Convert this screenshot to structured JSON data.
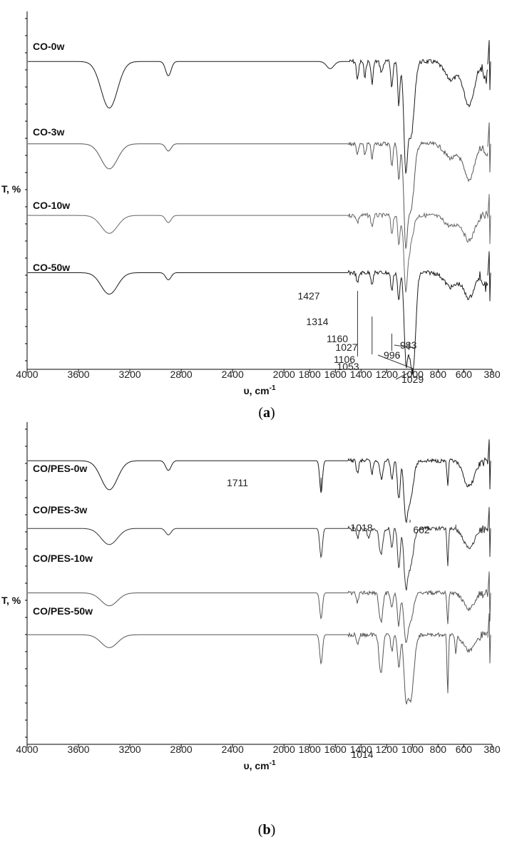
{
  "chart_data": [
    {
      "type": "line",
      "panel_label": "a",
      "xlabel_main": "υ, cm",
      "xlabel_sup": "-1",
      "ylabel": "T, %",
      "xlim": [
        4000,
        380
      ],
      "x_ticks": [
        4000,
        3600,
        3200,
        2800,
        2400,
        2000,
        1800,
        1600,
        1400,
        1200,
        1000,
        800,
        600,
        380
      ],
      "series": [
        {
          "name": "CO-0w",
          "color": "#1a1a1a",
          "base": 0.14,
          "features": [
            {
              "c": 3360,
              "w": 90,
              "d": 0.13
            },
            {
              "c": 2900,
              "w": 30,
              "d": 0.04
            },
            {
              "c": 1640,
              "w": 40,
              "d": 0.02
            },
            {
              "c": 1427,
              "w": 12,
              "d": 0.05
            },
            {
              "c": 1370,
              "w": 12,
              "d": 0.04
            },
            {
              "c": 1314,
              "w": 12,
              "d": 0.06
            },
            {
              "c": 1240,
              "w": 15,
              "d": 0.03
            },
            {
              "c": 1160,
              "w": 12,
              "d": 0.07
            },
            {
              "c": 1106,
              "w": 12,
              "d": 0.12
            },
            {
              "c": 1053,
              "w": 18,
              "d": 0.2
            },
            {
              "c": 1029,
              "w": 40,
              "d": 0.15
            },
            {
              "c": 1000,
              "w": 30,
              "d": 0.1
            },
            {
              "c": 700,
              "w": 70,
              "d": 0.05
            },
            {
              "c": 560,
              "w": 60,
              "d": 0.12
            },
            {
              "c": 430,
              "w": 25,
              "d": 0.05
            }
          ],
          "annotations": [
            {
              "x": 1427,
              "label": "1427"
            },
            {
              "x": 1314,
              "label": "1314"
            },
            {
              "x": 1160,
              "label": "1160"
            },
            {
              "x": 1106,
              "label": "1106"
            },
            {
              "x": 1053,
              "label": "1053"
            },
            {
              "x": 1029,
              "label": "1029"
            }
          ]
        },
        {
          "name": "CO-3w",
          "color": "#555555",
          "base": 0.37,
          "features": [
            {
              "c": 3360,
              "w": 90,
              "d": 0.07
            },
            {
              "c": 2900,
              "w": 30,
              "d": 0.02
            },
            {
              "c": 1427,
              "w": 12,
              "d": 0.03
            },
            {
              "c": 1370,
              "w": 12,
              "d": 0.03
            },
            {
              "c": 1314,
              "w": 12,
              "d": 0.04
            },
            {
              "c": 1160,
              "w": 12,
              "d": 0.06
            },
            {
              "c": 1106,
              "w": 12,
              "d": 0.1
            },
            {
              "c": 1053,
              "w": 18,
              "d": 0.19
            },
            {
              "c": 1029,
              "w": 40,
              "d": 0.14
            },
            {
              "c": 1000,
              "w": 30,
              "d": 0.08
            },
            {
              "c": 700,
              "w": 70,
              "d": 0.04
            },
            {
              "c": 560,
              "w": 60,
              "d": 0.1
            },
            {
              "c": 430,
              "w": 25,
              "d": 0.03
            }
          ],
          "annotations": []
        },
        {
          "name": "CO-10w",
          "color": "#666666",
          "base": 0.57,
          "features": [
            {
              "c": 3360,
              "w": 90,
              "d": 0.05
            },
            {
              "c": 2900,
              "w": 30,
              "d": 0.02
            },
            {
              "c": 1427,
              "w": 12,
              "d": 0.02
            },
            {
              "c": 1314,
              "w": 12,
              "d": 0.03
            },
            {
              "c": 1160,
              "w": 12,
              "d": 0.05
            },
            {
              "c": 1106,
              "w": 12,
              "d": 0.08
            },
            {
              "c": 1053,
              "w": 18,
              "d": 0.14
            },
            {
              "c": 1029,
              "w": 40,
              "d": 0.1
            },
            {
              "c": 700,
              "w": 70,
              "d": 0.03
            },
            {
              "c": 560,
              "w": 60,
              "d": 0.07
            }
          ],
          "annotations": []
        },
        {
          "name": "CO-50w",
          "color": "#1a1a1a",
          "base": 0.73,
          "features": [
            {
              "c": 3360,
              "w": 90,
              "d": 0.06
            },
            {
              "c": 2900,
              "w": 30,
              "d": 0.02
            },
            {
              "c": 1427,
              "w": 12,
              "d": 0.03
            },
            {
              "c": 1314,
              "w": 12,
              "d": 0.03
            },
            {
              "c": 1160,
              "w": 12,
              "d": 0.05
            },
            {
              "c": 1106,
              "w": 12,
              "d": 0.08
            },
            {
              "c": 1053,
              "w": 18,
              "d": 0.16
            },
            {
              "c": 1027,
              "w": 30,
              "d": 0.18
            },
            {
              "c": 996,
              "w": 25,
              "d": 0.14
            },
            {
              "c": 983,
              "w": 25,
              "d": 0.1
            },
            {
              "c": 700,
              "w": 70,
              "d": 0.04
            },
            {
              "c": 560,
              "w": 60,
              "d": 0.07
            },
            {
              "c": 430,
              "w": 25,
              "d": 0.04
            }
          ],
          "annotations": [
            {
              "x": 1027,
              "label": "1027"
            },
            {
              "x": 996,
              "label": "996"
            },
            {
              "x": 983,
              "label": "983"
            }
          ]
        }
      ]
    },
    {
      "type": "line",
      "panel_label": "b",
      "xlabel_main": "υ, cm",
      "xlabel_sup": "-1",
      "ylabel": "T, %",
      "xlim": [
        4000,
        380
      ],
      "x_ticks": [
        4000,
        3600,
        3200,
        2800,
        2400,
        2000,
        1800,
        1600,
        1400,
        1200,
        1000,
        800,
        600,
        380
      ],
      "series": [
        {
          "name": "CO/PES-0w",
          "color": "#1a1a1a",
          "base": 0.12,
          "features": [
            {
              "c": 3360,
              "w": 90,
              "d": 0.09
            },
            {
              "c": 2900,
              "w": 30,
              "d": 0.03
            },
            {
              "c": 1711,
              "w": 15,
              "d": 0.1
            },
            {
              "c": 1427,
              "w": 12,
              "d": 0.04
            },
            {
              "c": 1314,
              "w": 12,
              "d": 0.04
            },
            {
              "c": 1240,
              "w": 15,
              "d": 0.06
            },
            {
              "c": 1160,
              "w": 12,
              "d": 0.06
            },
            {
              "c": 1106,
              "w": 15,
              "d": 0.12
            },
            {
              "c": 1053,
              "w": 20,
              "d": 0.14
            },
            {
              "c": 1018,
              "w": 35,
              "d": 0.12
            },
            {
              "c": 725,
              "w": 8,
              "d": 0.08
            },
            {
              "c": 560,
              "w": 60,
              "d": 0.08
            }
          ],
          "annotations": [
            {
              "x": 1711,
              "label": "1711"
            }
          ]
        },
        {
          "name": "CO/PES-3w",
          "color": "#333333",
          "base": 0.33,
          "features": [
            {
              "c": 3360,
              "w": 90,
              "d": 0.05
            },
            {
              "c": 2900,
              "w": 30,
              "d": 0.02
            },
            {
              "c": 1711,
              "w": 15,
              "d": 0.09
            },
            {
              "c": 1427,
              "w": 12,
              "d": 0.03
            },
            {
              "c": 1340,
              "w": 15,
              "d": 0.03
            },
            {
              "c": 1245,
              "w": 20,
              "d": 0.08
            },
            {
              "c": 1160,
              "w": 12,
              "d": 0.06
            },
            {
              "c": 1106,
              "w": 15,
              "d": 0.12
            },
            {
              "c": 1053,
              "w": 20,
              "d": 0.14
            },
            {
              "c": 1018,
              "w": 35,
              "d": 0.12
            },
            {
              "c": 725,
              "w": 8,
              "d": 0.12
            },
            {
              "c": 560,
              "w": 60,
              "d": 0.06
            }
          ],
          "annotations": [
            {
              "x": 1018,
              "label": "1018"
            }
          ]
        },
        {
          "name": "CO/PES-10w",
          "color": "#555555",
          "base": 0.53,
          "features": [
            {
              "c": 3360,
              "w": 90,
              "d": 0.04
            },
            {
              "c": 1711,
              "w": 15,
              "d": 0.08
            },
            {
              "c": 1427,
              "w": 12,
              "d": 0.03
            },
            {
              "c": 1245,
              "w": 20,
              "d": 0.09
            },
            {
              "c": 1160,
              "w": 12,
              "d": 0.05
            },
            {
              "c": 1106,
              "w": 15,
              "d": 0.1
            },
            {
              "c": 1053,
              "w": 20,
              "d": 0.12
            },
            {
              "c": 1018,
              "w": 35,
              "d": 0.09
            },
            {
              "c": 725,
              "w": 8,
              "d": 0.1
            },
            {
              "c": 560,
              "w": 60,
              "d": 0.05
            }
          ],
          "annotations": []
        },
        {
          "name": "CO/PES-50w",
          "color": "#555555",
          "base": 0.66,
          "features": [
            {
              "c": 3360,
              "w": 90,
              "d": 0.04
            },
            {
              "c": 1711,
              "w": 15,
              "d": 0.09
            },
            {
              "c": 1427,
              "w": 12,
              "d": 0.03
            },
            {
              "c": 1245,
              "w": 20,
              "d": 0.12
            },
            {
              "c": 1160,
              "w": 12,
              "d": 0.05
            },
            {
              "c": 1106,
              "w": 15,
              "d": 0.1
            },
            {
              "c": 1053,
              "w": 20,
              "d": 0.14
            },
            {
              "c": 1014,
              "w": 35,
              "d": 0.2
            },
            {
              "c": 725,
              "w": 8,
              "d": 0.18
            },
            {
              "c": 662,
              "w": 8,
              "d": 0.06
            },
            {
              "c": 560,
              "w": 60,
              "d": 0.05
            }
          ],
          "annotations": [
            {
              "x": 1014,
              "label": "1014"
            },
            {
              "x": 662,
              "label": "662"
            }
          ]
        }
      ]
    }
  ]
}
